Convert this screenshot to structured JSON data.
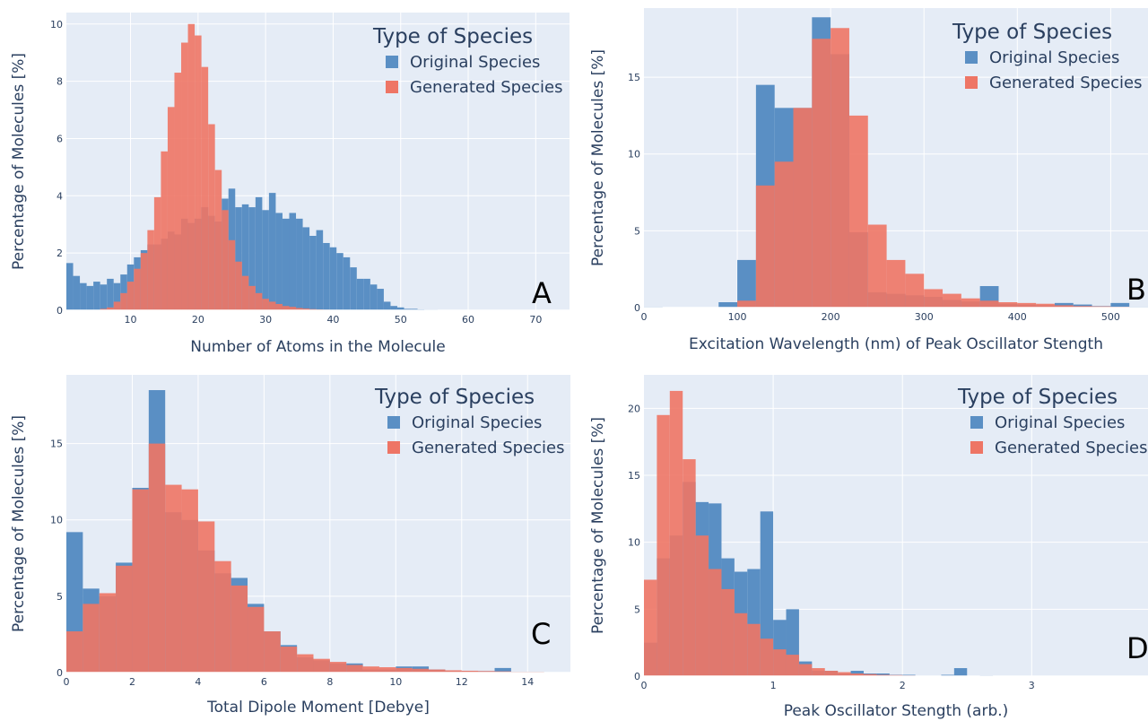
{
  "colors": {
    "original": "#5A8FC4",
    "generated": "#EE7565",
    "plot_bg": "#E5ECF6",
    "grid": "#FFFFFF"
  },
  "chart_data": [
    {
      "type": "bar",
      "panel": "A",
      "title": "",
      "xlabel": "Number of Atoms in the Molecule",
      "ylabel": "Percentage of Molecules [%]",
      "legend_title": "Type of Species",
      "legend_position": "top-right",
      "xlim": [
        0.5,
        75
      ],
      "ylim": [
        0,
        10.4
      ],
      "xticks": [
        10,
        20,
        30,
        40,
        50,
        60,
        70
      ],
      "yticks": [
        0,
        2,
        4,
        6,
        8,
        10
      ],
      "bin_start": 0.5,
      "bin_width": 1,
      "series": [
        {
          "name": "Original Species",
          "values": [
            1.65,
            1.2,
            0.95,
            0.85,
            1.0,
            0.9,
            1.1,
            0.95,
            1.25,
            1.6,
            1.85,
            2.1,
            2.3,
            2.3,
            2.5,
            2.75,
            2.65,
            3.2,
            3.05,
            3.2,
            3.6,
            3.3,
            3.1,
            3.9,
            4.25,
            3.6,
            3.7,
            3.6,
            3.95,
            3.5,
            4.1,
            3.4,
            3.2,
            3.4,
            3.2,
            2.9,
            2.6,
            2.8,
            2.35,
            2.2,
            2.0,
            1.85,
            1.5,
            1.1,
            1.1,
            0.9,
            0.75,
            0.3,
            0.15,
            0.1,
            0.05,
            0.05,
            0.03,
            0.02,
            0.02,
            0.01,
            0.01,
            0.01,
            0.01,
            0.01,
            0,
            0,
            0,
            0,
            0,
            0,
            0,
            0,
            0,
            0,
            0,
            0,
            0,
            0
          ]
        },
        {
          "name": "Generated Species",
          "values": [
            0,
            0,
            0,
            0,
            0,
            0.05,
            0.1,
            0.3,
            0.6,
            1.0,
            1.45,
            2.0,
            2.8,
            3.95,
            5.55,
            7.1,
            8.3,
            9.35,
            10.0,
            9.6,
            8.5,
            6.5,
            4.9,
            3.5,
            2.45,
            1.7,
            1.2,
            0.85,
            0.6,
            0.4,
            0.3,
            0.22,
            0.15,
            0.12,
            0.08,
            0.06,
            0.04,
            0.03,
            0.02,
            0.01,
            0.01,
            0,
            0,
            0,
            0,
            0,
            0,
            0,
            0,
            0,
            0,
            0,
            0,
            0,
            0,
            0,
            0,
            0,
            0,
            0,
            0,
            0,
            0,
            0,
            0,
            0,
            0,
            0,
            0,
            0,
            0,
            0,
            0,
            0
          ]
        }
      ]
    },
    {
      "type": "bar",
      "panel": "B",
      "title": "",
      "xlabel": "Excitation Wavelength (nm) of Peak Oscillator Stength",
      "ylabel": "Percentage of Molecules [%]",
      "legend_title": "Type of Species",
      "legend_position": "top-right",
      "xlim": [
        0,
        540
      ],
      "ylim": [
        0,
        19.5
      ],
      "xticks": [
        0,
        100,
        200,
        300,
        400,
        500
      ],
      "yticks": [
        0,
        5,
        10,
        15
      ],
      "bin_start": 0,
      "bin_width": 20,
      "series": [
        {
          "name": "Original Species",
          "values": [
            0.05,
            0,
            0,
            0,
            0.35,
            3.1,
            14.5,
            13.0,
            13.0,
            18.9,
            16.5,
            4.9,
            1.0,
            0.9,
            0.8,
            0.7,
            0.5,
            0.4,
            1.4,
            0.25,
            0.2,
            0.15,
            0.3,
            0.2,
            0.1,
            0.3,
            0.05
          ]
        },
        {
          "name": "Generated Species",
          "values": [
            0,
            0,
            0,
            0,
            0,
            0.45,
            7.95,
            9.5,
            13.0,
            17.5,
            18.2,
            12.5,
            5.4,
            3.1,
            2.2,
            1.2,
            0.9,
            0.6,
            0.45,
            0.35,
            0.3,
            0.25,
            0.15,
            0.1,
            0.08,
            0.05,
            0.03
          ]
        }
      ]
    },
    {
      "type": "bar",
      "panel": "C",
      "title": "",
      "xlabel": "Total Dipole Moment [Debye]",
      "ylabel": "Percentage of Molecules [%]",
      "legend_title": "Type of Species",
      "legend_position": "top-right",
      "xlim": [
        0,
        15.3
      ],
      "ylim": [
        0,
        19.5
      ],
      "xticks": [
        0,
        2,
        4,
        6,
        8,
        10,
        12,
        14
      ],
      "yticks": [
        0,
        5,
        10,
        15
      ],
      "bin_start": 0,
      "bin_width": 0.5,
      "series": [
        {
          "name": "Original Species",
          "values": [
            9.2,
            5.5,
            5.0,
            7.2,
            12.1,
            18.5,
            10.5,
            10.0,
            8.0,
            6.5,
            6.2,
            4.5,
            2.7,
            1.8,
            1.0,
            0.8,
            0.6,
            0.6,
            0.2,
            0.2,
            0.4,
            0.4,
            0.2,
            0.1,
            0.1,
            0.1,
            0.3,
            0.05,
            0.05
          ]
        },
        {
          "name": "Generated Species",
          "values": [
            2.7,
            4.5,
            5.2,
            7.0,
            12.0,
            15.0,
            12.3,
            12.0,
            9.9,
            7.3,
            5.7,
            4.3,
            2.7,
            1.7,
            1.2,
            0.9,
            0.7,
            0.5,
            0.4,
            0.35,
            0.3,
            0.25,
            0.2,
            0.15,
            0.12,
            0.1,
            0.08,
            0.05,
            0.05
          ]
        }
      ]
    },
    {
      "type": "bar",
      "panel": "D",
      "title": "",
      "xlabel": "Peak Oscillator Stength (arb.)",
      "ylabel": "Percentage of Molecules [%]",
      "legend_title": "Type of Species",
      "legend_position": "top-right",
      "xlim": [
        0,
        3.9
      ],
      "ylim": [
        0,
        22.5
      ],
      "xticks": [
        0,
        1,
        2,
        3
      ],
      "yticks": [
        0,
        5,
        10,
        15,
        20
      ],
      "bin_start": 0,
      "bin_width": 0.1,
      "series": [
        {
          "name": "Original Species",
          "values": [
            2.5,
            8.8,
            10.5,
            14.5,
            13.0,
            12.9,
            8.8,
            7.8,
            8.0,
            12.3,
            4.2,
            5.0,
            1.1,
            0.4,
            0.4,
            0.2,
            0.4,
            0.2,
            0.2,
            0.1,
            0.1,
            0,
            0,
            0.1,
            0.6,
            0,
            0.05,
            0,
            0,
            0
          ]
        },
        {
          "name": "Generated Species",
          "values": [
            7.2,
            19.5,
            21.3,
            16.2,
            10.5,
            8.0,
            6.5,
            4.7,
            3.9,
            2.8,
            2.0,
            1.6,
            0.9,
            0.6,
            0.4,
            0.3,
            0.2,
            0.15,
            0.1,
            0.08,
            0.05,
            0.03,
            0.02,
            0.01,
            0.01,
            0,
            0,
            0,
            0,
            0
          ]
        }
      ]
    }
  ]
}
